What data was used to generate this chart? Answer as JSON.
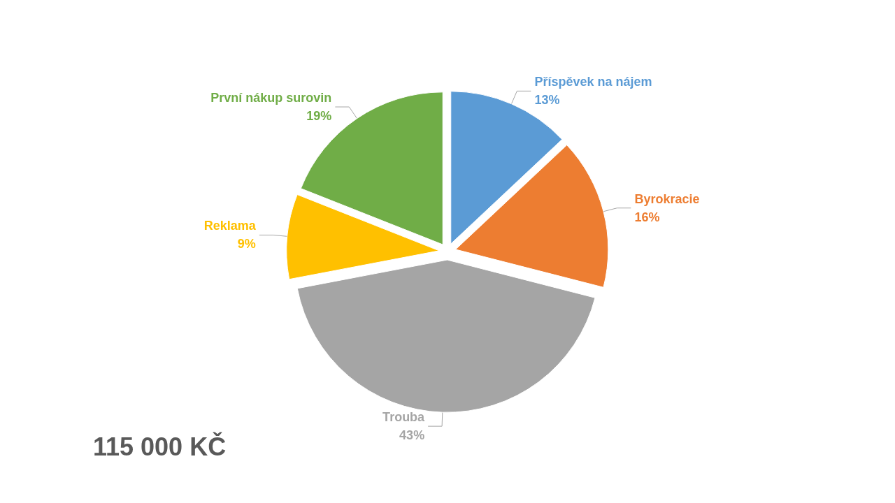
{
  "chart_data": {
    "type": "pie",
    "categories": [
      "Příspěvek na nájem",
      "Byrokracie",
      "Trouba",
      "Reklama",
      "První nákup surovin"
    ],
    "values": [
      13,
      16,
      43,
      9,
      19
    ],
    "value_labels": [
      "13%",
      "16%",
      "43%",
      "9%",
      "19%"
    ],
    "colors": [
      "#5b9bd5",
      "#ed7d31",
      "#a5a5a5",
      "#ffc000",
      "#70ad47"
    ],
    "annotations": [
      "115 000 KČ"
    ],
    "legend": false
  }
}
